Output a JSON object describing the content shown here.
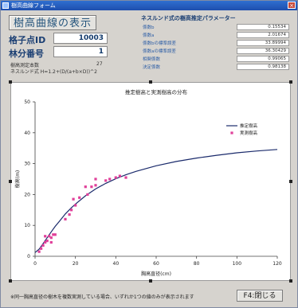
{
  "window": {
    "title": "樹高曲線フォーム"
  },
  "header": {
    "display_button": "樹高曲線の表示"
  },
  "fields": {
    "grid_point_label": "格子点ID",
    "grid_point_value": "10003",
    "forest_no_label": "林分番号",
    "forest_no_value": "1"
  },
  "info": {
    "measured_count_label": "樹高測定本数",
    "measured_count_value": "27",
    "formula": "ネスルンド式 H=1.2+(D/(a+b×D))^2"
  },
  "params": {
    "title": "ネスルンド式の樹高推定パラメーター",
    "rows": [
      {
        "label": "係数b",
        "value": "0.15534"
      },
      {
        "label": "係数a",
        "value": "2.01674"
      },
      {
        "label": "係数bの標準誤差",
        "value": "33.89994"
      },
      {
        "label": "係数aの標準誤差",
        "value": "36.30429"
      },
      {
        "label": "相関係数",
        "value": "0.99065"
      },
      {
        "label": "決定係数",
        "value": "0.98138"
      }
    ]
  },
  "footer": {
    "note": "※同一胸高直径の樹木を複数実測している場合、いずれか1つの値のみが表示されます",
    "close_button": "F4:閉じる"
  },
  "chart_data": {
    "type": "scatter",
    "title": "推定樹高と実測樹高の分布",
    "xlabel": "胸高直径(cm)",
    "ylabel": "樹高(m)",
    "xlim": [
      0,
      120
    ],
    "ylim": [
      0,
      50
    ],
    "xticks": [
      0,
      20,
      40,
      60,
      80,
      100,
      120
    ],
    "yticks": [
      0,
      10,
      20,
      30,
      40,
      50
    ],
    "grid": false,
    "legend_position": "top-right",
    "series": [
      {
        "name": "推定樹高",
        "kind": "line",
        "color": "#1a2a6b",
        "x": [
          0,
          2,
          4,
          6,
          8,
          10,
          12,
          15,
          18,
          20,
          25,
          30,
          35,
          40,
          45,
          50,
          60,
          70,
          80,
          90,
          100,
          110,
          120
        ],
        "y": [
          1.2,
          2.3,
          4.1,
          6.0,
          7.9,
          9.7,
          11.3,
          13.7,
          15.7,
          16.9,
          19.6,
          21.8,
          23.6,
          25.1,
          26.4,
          27.5,
          29.3,
          30.7,
          31.8,
          32.7,
          33.5,
          34.1,
          34.6
        ]
      },
      {
        "name": "実測樹高",
        "kind": "points",
        "color": "#e0409a",
        "x": [
          2,
          3,
          4,
          5,
          5,
          6,
          7,
          8,
          8,
          9,
          10,
          15,
          17,
          18,
          19,
          20,
          22,
          25,
          26,
          28,
          30,
          30,
          35,
          37,
          40,
          42,
          45
        ],
        "y": [
          1.5,
          2.5,
          3.5,
          4.5,
          6.5,
          5.0,
          6.5,
          4.5,
          6.0,
          7.0,
          7.0,
          12.0,
          13.5,
          15.0,
          18.5,
          16.5,
          19.0,
          22.5,
          20.0,
          22.5,
          23.0,
          25.0,
          24.5,
          25.0,
          25.5,
          26.0,
          25.5
        ]
      }
    ]
  }
}
